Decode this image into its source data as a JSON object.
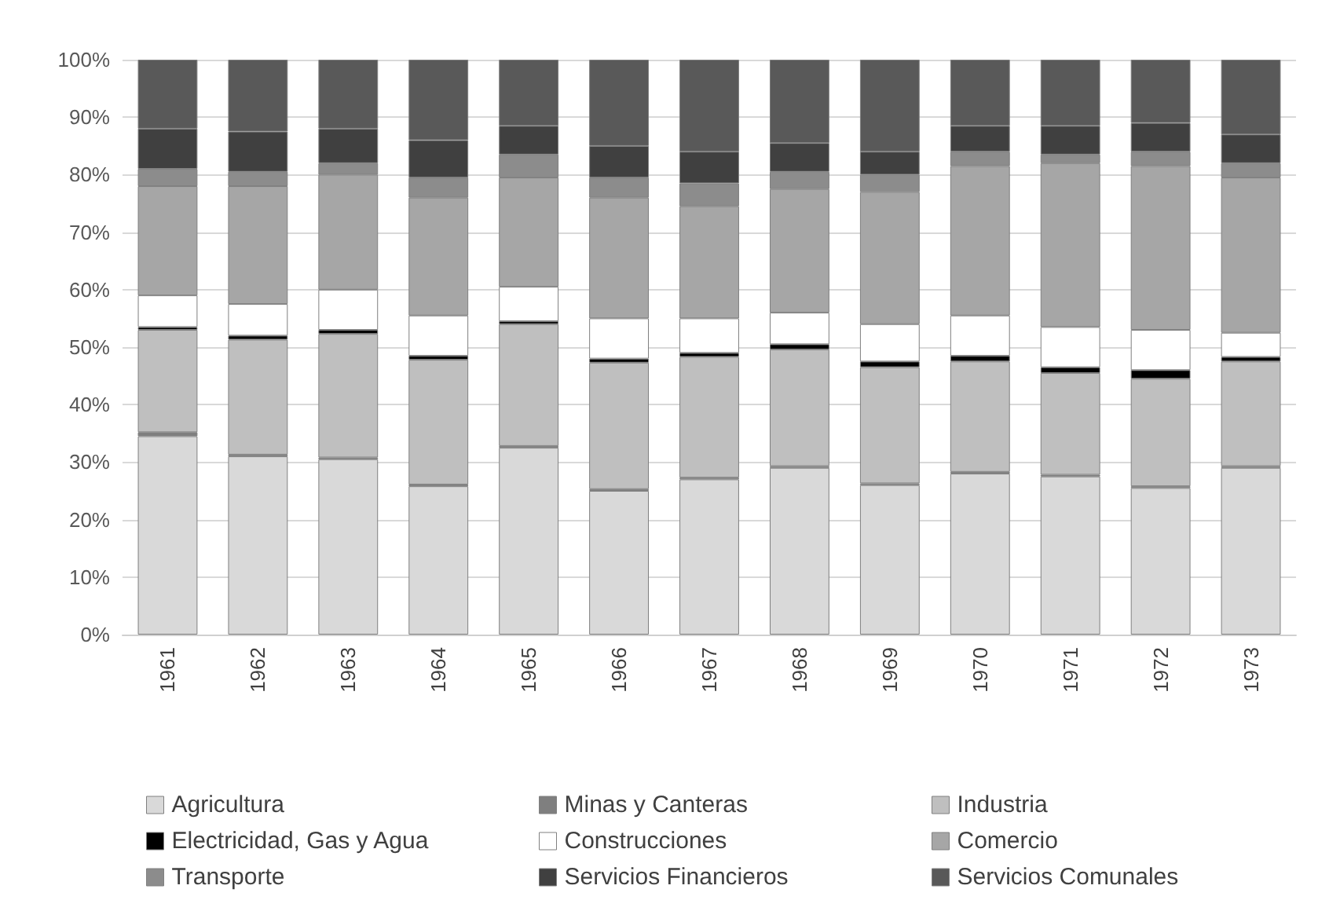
{
  "chart_data": {
    "type": "bar",
    "stacked": true,
    "categories": [
      "1961",
      "1962",
      "1963",
      "1964",
      "1965",
      "1966",
      "1967",
      "1968",
      "1969",
      "1970",
      "1971",
      "1972",
      "1973"
    ],
    "series": [
      {
        "name": "Agricultura",
        "color": "#d9d9d9",
        "values": [
          34.5,
          31,
          30.5,
          25.8,
          32.5,
          25,
          27,
          29,
          26,
          28,
          27.5,
          25.5,
          29
        ]
      },
      {
        "name": "Minas y Canteras",
        "color": "#7f7f7f",
        "values": [
          0.7,
          0.3,
          0.3,
          0.3,
          0.3,
          0.3,
          0.3,
          0.3,
          0.3,
          0.3,
          0.3,
          0.3,
          0.3
        ]
      },
      {
        "name": "Industria",
        "color": "#bfbfbf",
        "values": [
          17.8,
          20,
          21.5,
          21.7,
          21.2,
          22,
          21,
          20.3,
          20.2,
          19.2,
          17.7,
          18.7,
          18.2
        ]
      },
      {
        "name": "Electricidad, Gas y Agua",
        "color": "#000000",
        "values": [
          0.5,
          0.7,
          0.7,
          0.7,
          0.5,
          0.7,
          0.7,
          0.9,
          1,
          1,
          1,
          1.5,
          0.8
        ]
      },
      {
        "name": "Construcciones",
        "color": "#ffffff",
        "values": [
          5.5,
          5.5,
          7,
          7,
          6,
          7,
          6,
          5.5,
          6.5,
          7,
          7,
          7,
          4.2
        ]
      },
      {
        "name": "Comercio",
        "color": "#a6a6a6",
        "values": [
          19,
          20.5,
          20,
          20.5,
          19,
          21,
          19.5,
          21.5,
          23,
          26,
          28.5,
          28.5,
          27
        ]
      },
      {
        "name": "Transporte",
        "color": "#8c8c8c",
        "values": [
          3,
          2.5,
          2,
          3.5,
          4,
          3.5,
          4,
          3,
          3,
          2.5,
          1.5,
          2.5,
          2.5
        ]
      },
      {
        "name": "Servicios Financieros",
        "color": "#404040",
        "values": [
          7,
          7,
          6,
          6.5,
          5,
          5.5,
          5.5,
          5,
          4,
          4.5,
          5,
          5,
          5
        ]
      },
      {
        "name": "Servicios Comunales",
        "color": "#595959",
        "values": [
          12,
          12.5,
          12,
          14,
          11.5,
          15,
          16,
          14.5,
          16,
          11.5,
          11.5,
          11,
          13
        ]
      }
    ],
    "ylim": [
      0,
      100
    ],
    "yticks": [
      {
        "value": 0,
        "label": "0%"
      },
      {
        "value": 10,
        "label": "10%"
      },
      {
        "value": 20,
        "label": "20%"
      },
      {
        "value": 30,
        "label": "30%"
      },
      {
        "value": 40,
        "label": "40%"
      },
      {
        "value": 50,
        "label": "50%"
      },
      {
        "value": 60,
        "label": "60%"
      },
      {
        "value": 70,
        "label": "70%"
      },
      {
        "value": 80,
        "label": "80%"
      },
      {
        "value": 90,
        "label": "90%"
      },
      {
        "value": 100,
        "label": "100%"
      }
    ],
    "grid": "y",
    "legend": "bottom"
  }
}
